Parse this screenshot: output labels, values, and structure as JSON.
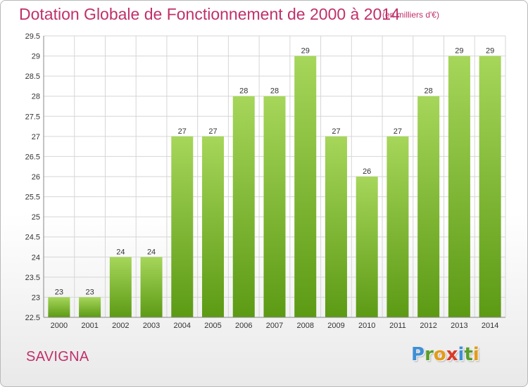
{
  "chart_data": {
    "type": "bar",
    "title": "Dotation Globale de Fonctionnement de 2000 à 2014",
    "subtitle": "(en milliers d'€)",
    "categories": [
      "2000",
      "2001",
      "2002",
      "2003",
      "2004",
      "2005",
      "2006",
      "2007",
      "2008",
      "2009",
      "2010",
      "2011",
      "2012",
      "2013",
      "2014"
    ],
    "values": [
      23,
      23,
      24,
      24,
      27,
      27,
      28,
      28,
      29,
      27,
      26,
      27,
      28,
      29,
      29
    ],
    "ylim": [
      22.5,
      29.5
    ],
    "yticks": [
      22.5,
      23,
      23.5,
      24,
      24.5,
      25,
      25.5,
      26,
      26.5,
      27,
      27.5,
      28,
      28.5,
      29,
      29.5
    ],
    "ytick_labels": [
      "22.5",
      "23",
      "23.5",
      "24",
      "24.5",
      "25",
      "25.5",
      "26",
      "26.5",
      "27",
      "27.5",
      "28",
      "28.5",
      "29",
      "29.5"
    ],
    "grid": true,
    "xlabel": "",
    "ylabel": ""
  },
  "commune": "SAVIGNA",
  "brand": {
    "letters": [
      "P",
      "r",
      "o",
      "x",
      "i",
      "t",
      "i"
    ],
    "colors": [
      "#3d8fd6",
      "#5a9e2a",
      "#e39b18",
      "#d93a2b",
      "#3d8fd6",
      "#5a9e2a",
      "#e39b18"
    ]
  },
  "colors": {
    "title": "#c0306a",
    "bar_top": "#a6d65a",
    "bar_bottom": "#5c9a14",
    "grid": "#d6d6d6",
    "axis": "#888888"
  }
}
